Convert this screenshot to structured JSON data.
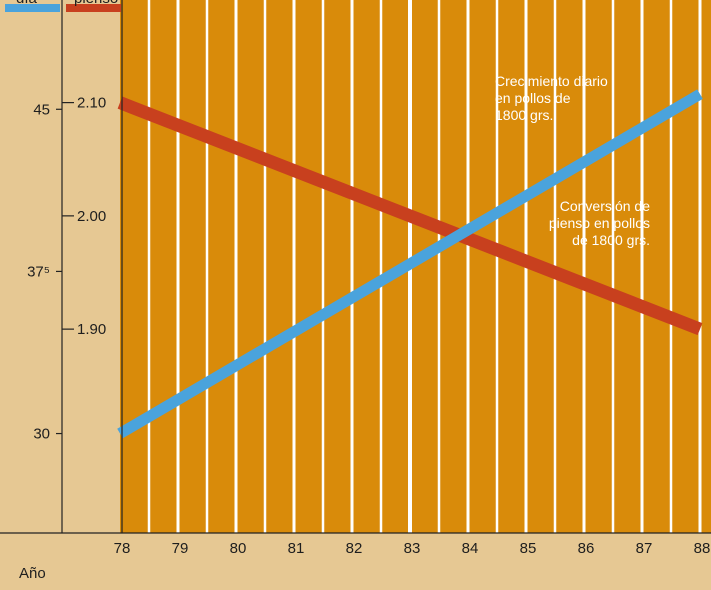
{
  "header": {
    "left_axis_head": "día",
    "right_axis_head": "pienso"
  },
  "colors": {
    "background": "#e6c893",
    "plot_area": "#d98b0a",
    "gridline": "#ffffff",
    "growth_line": "#4aa3dc",
    "conversion_line": "#c8401e",
    "axis": "#222222"
  },
  "chart_data": {
    "type": "line",
    "title": "",
    "xlabel": "Año",
    "x_ticks": [
      "78",
      "79",
      "80",
      "81",
      "82",
      "83",
      "84",
      "85",
      "86",
      "87",
      "88"
    ],
    "xlim": [
      78,
      88
    ],
    "y_left": {
      "ticks": [
        {
          "value": 45,
          "label": "45"
        },
        {
          "value": 37.5,
          "label": "37⁵"
        },
        {
          "value": 30,
          "label": "30"
        }
      ],
      "lim": [
        25.4,
        49.5
      ]
    },
    "y_right": {
      "ticks": [
        {
          "value": 2.1,
          "label": "2.10"
        },
        {
          "value": 2.0,
          "label": "2.00"
        },
        {
          "value": 1.9,
          "label": "1.90"
        }
      ],
      "lim": [
        1.72,
        2.18
      ]
    },
    "series": [
      {
        "name": "Crecimiento diario en pollos de 1800 grs.",
        "axis": "left",
        "label_lines": [
          "Crecimiento diario",
          "en pollos de",
          "1800 grs."
        ],
        "x": [
          78,
          88
        ],
        "values": [
          30.0,
          45.7
        ]
      },
      {
        "name": "Conversión de pienso en pollos de 1800 grs.",
        "axis": "right",
        "label_lines": [
          "Conversión de",
          "pienso en pollos",
          "de 1800 grs."
        ],
        "x": [
          78,
          88
        ],
        "values": [
          2.1,
          1.9
        ]
      }
    ],
    "grid": true,
    "legend": "inline labels"
  }
}
